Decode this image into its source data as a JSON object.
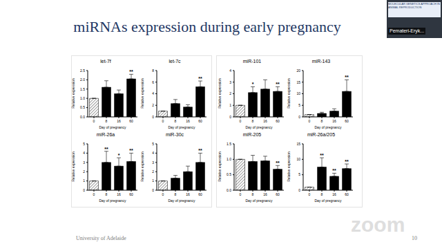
{
  "slide": {
    "title": "miRNAs expression during early pregnancy",
    "footer": "University of Adelaide",
    "page": 10,
    "watermark": "zoom",
    "video": {
      "name": "Pemateri-Eryk...",
      "banner": "MOLECULAR GENETICS APPROACH IN ANIMAL REPRODUCTION"
    }
  },
  "chart_data": [
    {
      "type": "bar",
      "title": "let-7f",
      "x_label": "Day of pregnancy",
      "y_label": "Relative expression",
      "categories": [
        "0",
        "8",
        "16",
        "60"
      ],
      "values": [
        1.0,
        1.6,
        1.25,
        2.05
      ],
      "errors": [
        0,
        0.35,
        0.2,
        0.25
      ],
      "annotations": [
        null,
        null,
        null,
        "**"
      ],
      "colors": [
        "#ffffff",
        "#000000",
        "#000000",
        "#000000"
      ],
      "ylim": [
        0,
        2.5
      ],
      "yticks": [
        {
          "value": 0,
          "label": "0.0"
        },
        {
          "value": 0.5,
          "label": "0.5"
        },
        {
          "value": 1,
          "label": "1.0"
        },
        {
          "value": 1.5,
          "label": "1.5"
        },
        {
          "value": 2,
          "label": "2.0"
        },
        {
          "value": 2.5,
          "label": "2.5"
        }
      ],
      "grid": false
    },
    {
      "type": "bar",
      "title": "let-7c",
      "x_label": "Day of pregnancy",
      "y_label": "Relative expression",
      "categories": [
        "0",
        "8",
        "16",
        "60"
      ],
      "values": [
        1.0,
        2.3,
        1.7,
        5.2
      ],
      "errors": [
        0,
        0.7,
        0.4,
        1.0
      ],
      "annotations": [
        null,
        null,
        null,
        "**"
      ],
      "colors": [
        "#ffffff",
        "#000000",
        "#000000",
        "#000000"
      ],
      "ylim": [
        0,
        8
      ],
      "yticks": [
        0,
        2,
        4,
        6,
        8
      ],
      "grid": false
    },
    {
      "type": "bar",
      "title": "miR-101",
      "x_label": "Day of pregnancy",
      "y_label": "Relative expression",
      "categories": [
        "0",
        "8",
        "16",
        "60"
      ],
      "values": [
        1.0,
        2.1,
        2.4,
        2.2
      ],
      "errors": [
        0,
        0.5,
        0.8,
        0.4
      ],
      "annotations": [
        null,
        "*",
        null,
        "**"
      ],
      "colors": [
        "#ffffff",
        "#000000",
        "#000000",
        "#000000"
      ],
      "ylim": [
        0,
        4
      ],
      "yticks": [
        0,
        1,
        2,
        3,
        4
      ],
      "grid": false
    },
    {
      "type": "bar",
      "title": "miR-143",
      "x_label": "Day of pregnancy",
      "y_label": "Relative expression",
      "categories": [
        "0",
        "8",
        "16",
        "60"
      ],
      "values": [
        1.0,
        1.5,
        2.5,
        11
      ],
      "errors": [
        0,
        0.5,
        1.0,
        5
      ],
      "annotations": [
        null,
        null,
        null,
        "**"
      ],
      "colors": [
        "#ffffff",
        "#000000",
        "#000000",
        "#000000"
      ],
      "ylim": [
        0,
        20
      ],
      "yticks": [
        0,
        5,
        10,
        15,
        20
      ],
      "grid": false
    },
    {
      "type": "bar",
      "title": "miR-26a",
      "x_label": "Day of pregnancy",
      "y_label": "Relative expression",
      "categories": [
        "0",
        "8",
        "16",
        "60"
      ],
      "values": [
        1.0,
        3.0,
        2.6,
        3.1
      ],
      "errors": [
        0,
        1.2,
        0.9,
        0.9
      ],
      "annotations": [
        null,
        "**",
        "*",
        "**"
      ],
      "colors": [
        "#ffffff",
        "#000000",
        "#000000",
        "#000000"
      ],
      "ylim": [
        0,
        5
      ],
      "yticks": [
        0,
        1,
        2,
        3,
        4,
        5
      ],
      "grid": false
    },
    {
      "type": "bar",
      "title": "miR-30c",
      "x_label": "Day of pregnancy",
      "y_label": "Relative expression",
      "categories": [
        "0",
        "8",
        "16",
        "60"
      ],
      "values": [
        1.0,
        1.3,
        2.0,
        3.0
      ],
      "errors": [
        0,
        0.3,
        0.6,
        1.0
      ],
      "annotations": [
        null,
        null,
        null,
        "**"
      ],
      "colors": [
        "#ffffff",
        "#000000",
        "#000000",
        "#000000"
      ],
      "ylim": [
        0,
        5
      ],
      "yticks": [
        0,
        1,
        2,
        3,
        4,
        5
      ],
      "grid": false
    },
    {
      "type": "bar",
      "title": "miR-205",
      "x_label": "Day of pregnancy",
      "y_label": "Relative expression",
      "categories": [
        "0",
        "8",
        "16",
        "60"
      ],
      "values": [
        1.0,
        0.93,
        0.95,
        0.68
      ],
      "errors": [
        0,
        0.2,
        0.15,
        0.12
      ],
      "annotations": [
        null,
        null,
        null,
        "**"
      ],
      "colors": [
        "#ffffff",
        "#000000",
        "#000000",
        "#000000"
      ],
      "ylim": [
        0,
        1.5
      ],
      "yticks": [
        {
          "value": 0,
          "label": "0.0"
        },
        {
          "value": 0.5,
          "label": "0.5"
        },
        {
          "value": 1,
          "label": "1.0"
        },
        {
          "value": 1.5,
          "label": "1.5"
        }
      ],
      "grid": false
    },
    {
      "type": "bar",
      "title": "miR-26a/205",
      "x_label": "Day of pregnancy",
      "y_label": "Relative expression",
      "categories": [
        "0",
        "8",
        "16",
        "60"
      ],
      "values": [
        1.0,
        7.5,
        4.5,
        7.0
      ],
      "errors": [
        0,
        3.0,
        1.0,
        1.5
      ],
      "annotations": [
        null,
        "**",
        "**",
        "**"
      ],
      "colors": [
        "#ffffff",
        "#000000",
        "#000000",
        "#000000"
      ],
      "ylim": [
        0,
        15
      ],
      "yticks": [
        0,
        5,
        10,
        15
      ],
      "grid": false
    }
  ]
}
